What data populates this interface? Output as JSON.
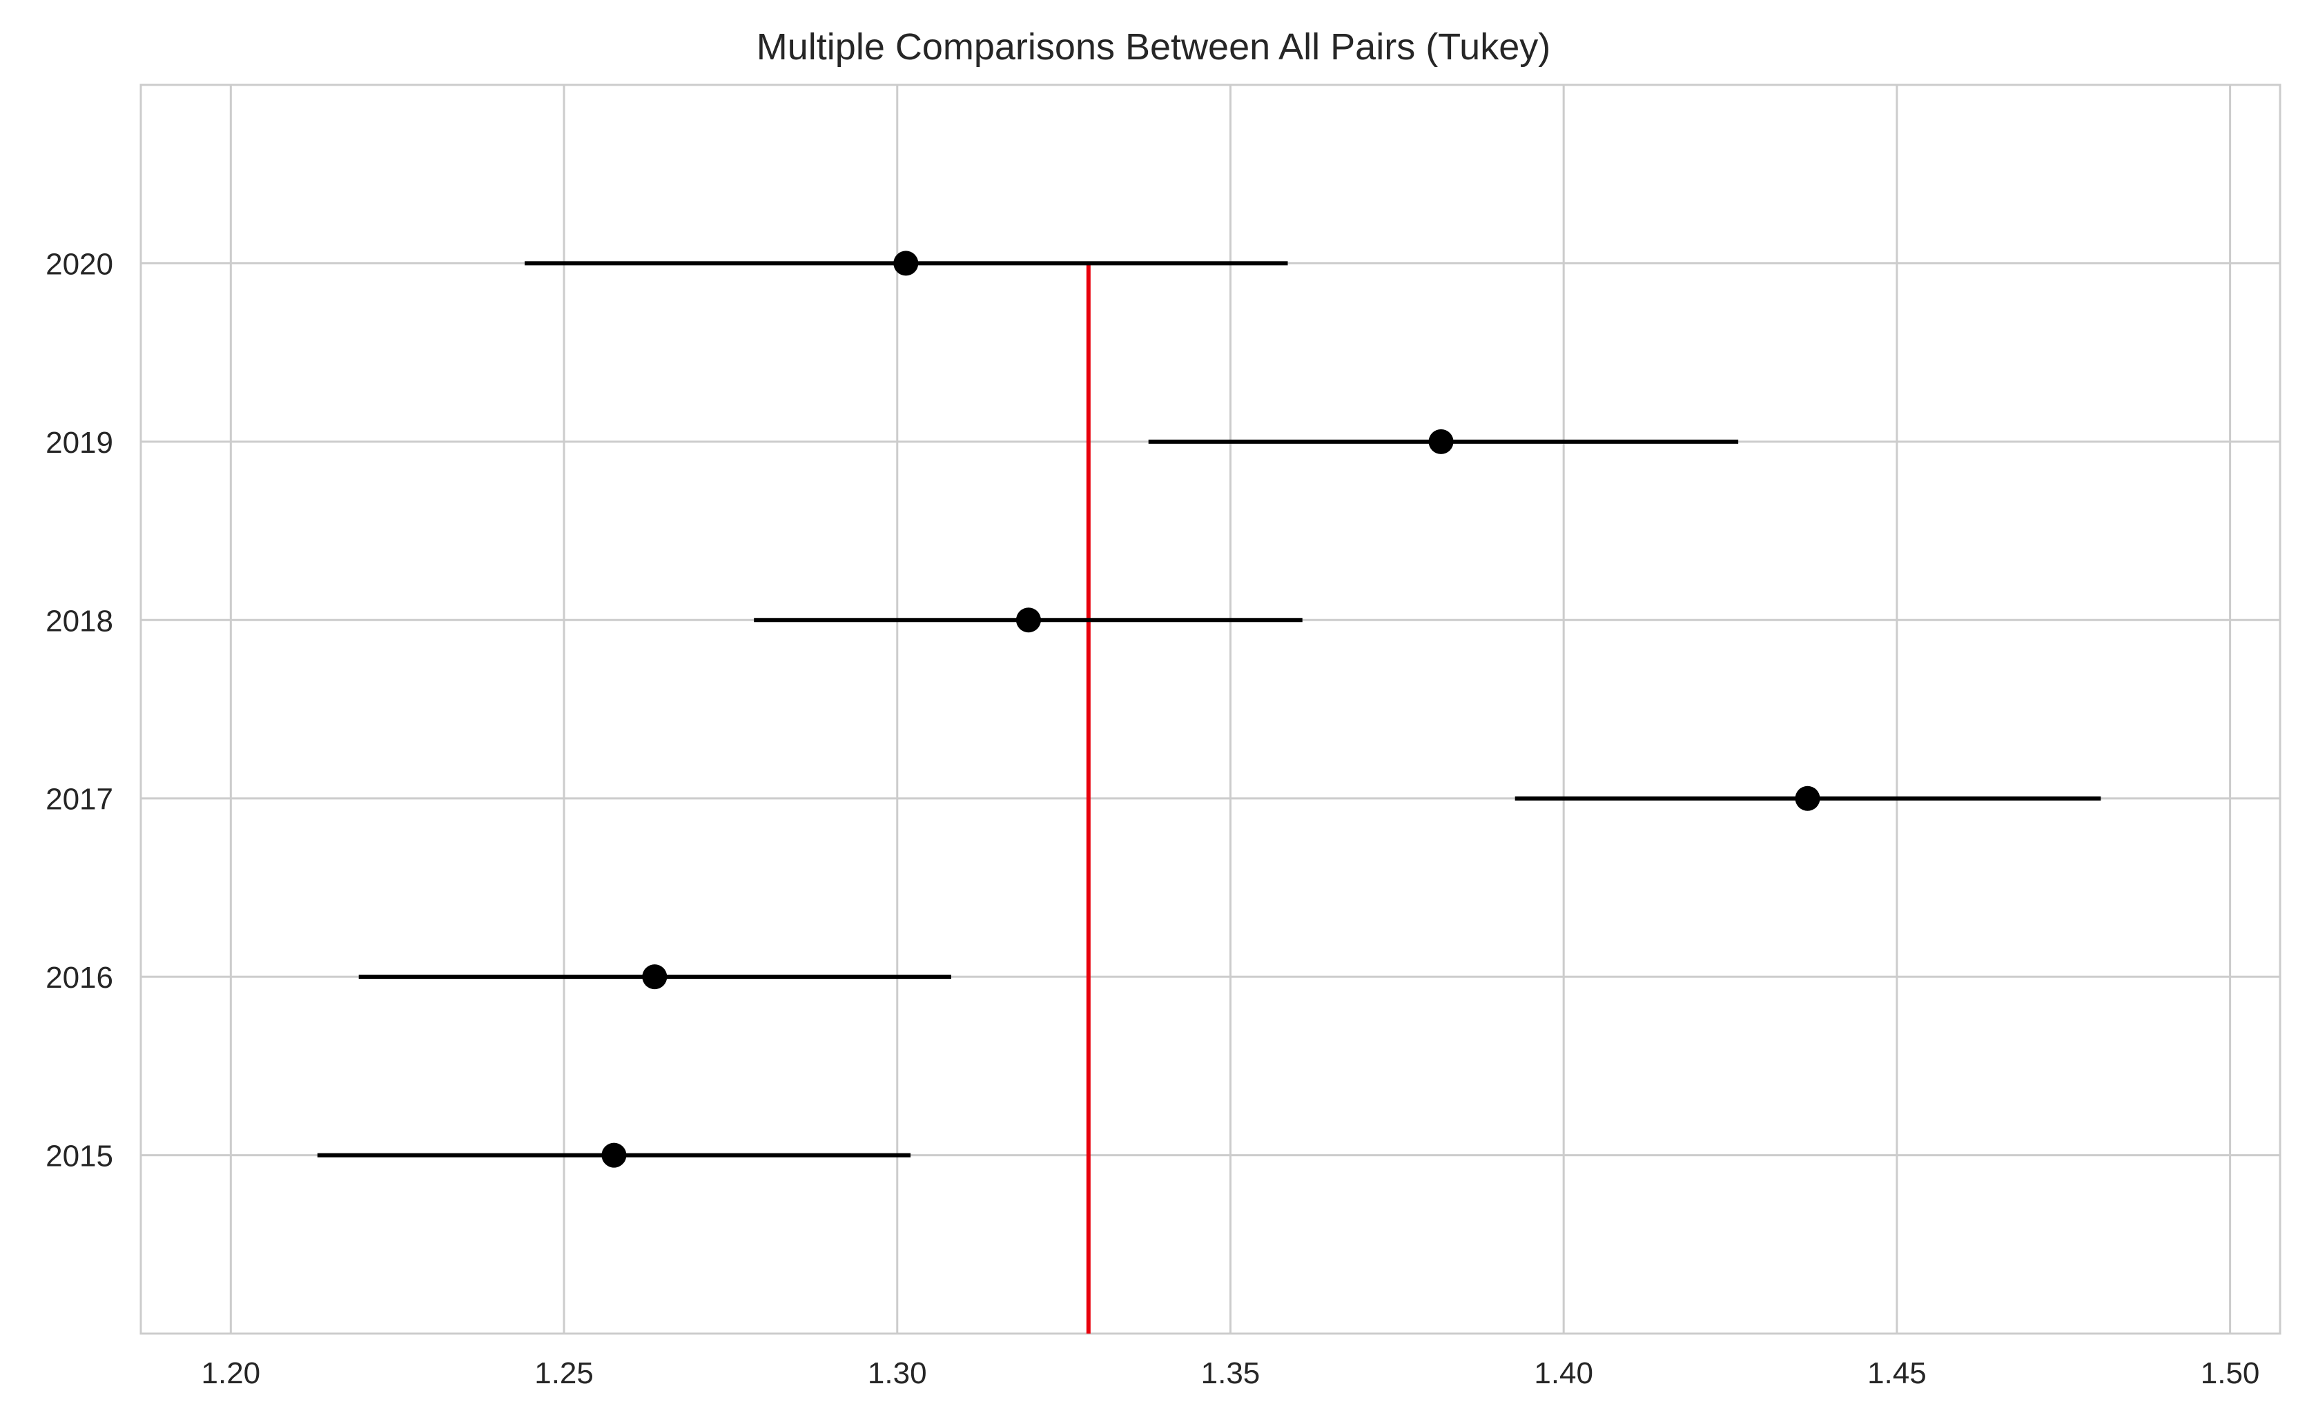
{
  "chart_data": {
    "type": "scatter",
    "title": "Multiple Comparisons Between All Pairs (Tukey)",
    "xlabel": "",
    "ylabel": "",
    "xlim": [
      1.1865,
      1.5075
    ],
    "x_ticks": [
      1.2,
      1.25,
      1.3,
      1.35,
      1.4,
      1.45,
      1.5
    ],
    "x_tick_labels": [
      "1.20",
      "1.25",
      "1.30",
      "1.35",
      "1.40",
      "1.45",
      "1.50"
    ],
    "categories": [
      "2015",
      "2016",
      "2017",
      "2018",
      "2019",
      "2020"
    ],
    "means": [
      1.2575,
      1.2636,
      1.4366,
      1.3197,
      1.3816,
      1.3013
    ],
    "lower": [
      1.213,
      1.2192,
      1.3927,
      1.2785,
      1.3377,
      1.2441
    ],
    "upper": [
      1.302,
      1.3081,
      1.4806,
      1.3608,
      1.4262,
      1.3586
    ],
    "reference_line": {
      "x": 1.3287,
      "color": "#e8000b"
    },
    "grid": true,
    "colors": {
      "points": "#000000",
      "intervals": "#000000",
      "grid": "#cccccc",
      "frame": "#cccccc",
      "text": "#262626"
    }
  }
}
